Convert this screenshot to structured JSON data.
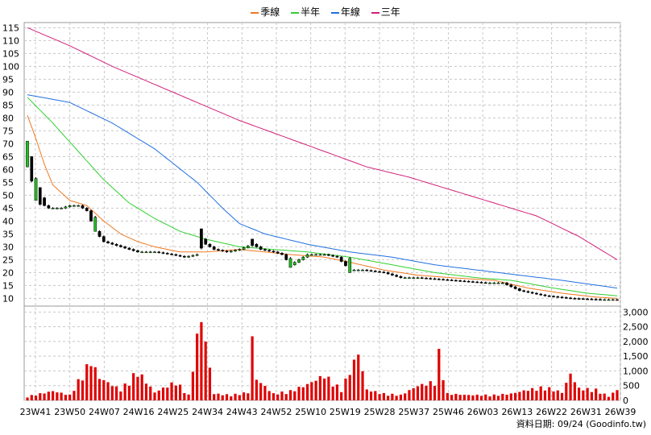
{
  "legend": {
    "items": [
      {
        "label": "季線",
        "color": "#f07820"
      },
      {
        "label": "半年",
        "color": "#30d030"
      },
      {
        "label": "年線",
        "color": "#2070e0"
      },
      {
        "label": "三年",
        "color": "#d0207a"
      }
    ]
  },
  "footer": {
    "text": "資料日期: 09/24  (Goodinfo.tw)"
  },
  "chart_data": {
    "type": "candlestick",
    "x_tick_labels": [
      "23W41",
      "23W50",
      "24W07",
      "24W16",
      "24W25",
      "24W34",
      "24W43",
      "24W52",
      "25W10",
      "25W19",
      "25W28",
      "25W37",
      "25W46",
      "26W03",
      "26W13",
      "26W22",
      "26W31",
      "26W39"
    ],
    "price_axis": {
      "ticks": [
        10,
        15,
        20,
        25,
        30,
        35,
        40,
        45,
        50,
        55,
        60,
        65,
        70,
        75,
        80,
        85,
        90,
        95,
        100,
        105,
        110,
        115
      ],
      "ylim": [
        7,
        117
      ],
      "grid": true
    },
    "volume_axis": {
      "ticks": [
        "0",
        "500",
        "1,000",
        "1,500",
        "2,000",
        "2,500",
        "3,000"
      ],
      "ylim": [
        0,
        3200
      ],
      "grid": true
    },
    "colors": {
      "up": "#20c020",
      "down": "#000000",
      "vol_bar": "#e00000",
      "last_candle": "#e00000"
    },
    "price_anchors": [
      [
        0,
        71
      ],
      [
        1,
        62
      ],
      [
        2,
        54
      ],
      [
        3,
        49
      ],
      [
        4,
        46
      ],
      [
        5,
        45
      ],
      [
        6,
        45
      ],
      [
        8,
        45
      ],
      [
        10,
        46
      ],
      [
        12,
        46
      ],
      [
        14,
        44
      ],
      [
        16,
        36
      ],
      [
        18,
        32
      ],
      [
        20,
        31
      ],
      [
        22,
        30
      ],
      [
        24,
        29
      ],
      [
        26,
        28
      ],
      [
        28,
        28
      ],
      [
        30,
        28
      ],
      [
        34,
        27
      ],
      [
        37,
        26
      ],
      [
        40,
        27
      ],
      [
        41,
        33
      ],
      [
        42,
        31
      ],
      [
        44,
        29
      ],
      [
        47,
        28
      ],
      [
        50,
        29
      ],
      [
        53,
        31
      ],
      [
        55,
        29
      ],
      [
        58,
        28
      ],
      [
        60,
        27
      ],
      [
        62,
        23
      ],
      [
        64,
        25
      ],
      [
        66,
        27
      ],
      [
        70,
        27
      ],
      [
        73,
        26
      ],
      [
        76,
        21
      ],
      [
        79,
        21
      ],
      [
        84,
        20
      ],
      [
        88,
        18
      ],
      [
        92,
        18
      ],
      [
        100,
        17
      ],
      [
        108,
        16
      ],
      [
        112,
        16
      ],
      [
        116,
        13
      ],
      [
        122,
        11
      ],
      [
        128,
        10
      ],
      [
        135,
        9.5
      ],
      [
        139,
        9.5
      ]
    ],
    "big_candles": [
      [
        0,
        71,
        61
      ],
      [
        1,
        65,
        55
      ],
      [
        2,
        57,
        48
      ],
      [
        3,
        53,
        46
      ],
      [
        16,
        42,
        36
      ],
      [
        41,
        37,
        29
      ],
      [
        53,
        33,
        30
      ],
      [
        62,
        26,
        22
      ],
      [
        76,
        26,
        20
      ]
    ],
    "ma": {
      "quarter": [
        [
          0,
          81
        ],
        [
          2,
          72
        ],
        [
          4,
          62
        ],
        [
          6,
          54
        ],
        [
          10,
          48
        ],
        [
          14,
          46
        ],
        [
          18,
          40
        ],
        [
          22,
          35
        ],
        [
          26,
          32
        ],
        [
          30,
          30
        ],
        [
          36,
          28
        ],
        [
          42,
          28
        ],
        [
          50,
          29
        ],
        [
          56,
          28
        ],
        [
          62,
          27
        ],
        [
          70,
          26
        ],
        [
          76,
          24
        ],
        [
          84,
          21
        ],
        [
          92,
          19
        ],
        [
          100,
          18
        ],
        [
          110,
          17
        ],
        [
          118,
          14
        ],
        [
          126,
          12
        ],
        [
          134,
          10.5
        ],
        [
          139,
          10
        ]
      ],
      "half_year": [
        [
          0,
          88
        ],
        [
          6,
          78
        ],
        [
          12,
          67
        ],
        [
          18,
          56
        ],
        [
          24,
          47
        ],
        [
          30,
          41
        ],
        [
          36,
          36
        ],
        [
          42,
          33
        ],
        [
          50,
          30
        ],
        [
          58,
          29
        ],
        [
          66,
          28
        ],
        [
          76,
          26
        ],
        [
          86,
          23
        ],
        [
          96,
          20
        ],
        [
          106,
          18
        ],
        [
          114,
          17
        ],
        [
          124,
          14
        ],
        [
          132,
          12
        ],
        [
          139,
          11
        ]
      ],
      "year": [
        [
          0,
          89
        ],
        [
          10,
          86
        ],
        [
          20,
          78
        ],
        [
          30,
          68
        ],
        [
          40,
          55
        ],
        [
          46,
          45
        ],
        [
          50,
          39
        ],
        [
          56,
          35
        ],
        [
          66,
          31
        ],
        [
          76,
          28
        ],
        [
          86,
          26
        ],
        [
          96,
          23
        ],
        [
          106,
          21
        ],
        [
          116,
          19
        ],
        [
          126,
          17
        ],
        [
          139,
          14
        ]
      ],
      "three_year": [
        [
          0,
          115
        ],
        [
          10,
          108
        ],
        [
          20,
          100
        ],
        [
          30,
          93
        ],
        [
          40,
          86
        ],
        [
          50,
          79
        ],
        [
          60,
          73
        ],
        [
          70,
          67
        ],
        [
          80,
          61
        ],
        [
          90,
          57
        ],
        [
          100,
          52
        ],
        [
          110,
          47
        ],
        [
          120,
          42
        ],
        [
          130,
          34
        ],
        [
          139,
          25
        ]
      ]
    },
    "volume_anchors": [
      [
        0,
        150
      ],
      [
        6,
        350
      ],
      [
        10,
        200
      ],
      [
        15,
        1500
      ],
      [
        17,
        850
      ],
      [
        22,
        400
      ],
      [
        26,
        1100
      ],
      [
        30,
        300
      ],
      [
        35,
        700
      ],
      [
        38,
        200
      ],
      [
        40,
        2350
      ],
      [
        41,
        3150
      ],
      [
        44,
        250
      ],
      [
        48,
        200
      ],
      [
        52,
        300
      ],
      [
        53,
        2300
      ],
      [
        54,
        800
      ],
      [
        58,
        250
      ],
      [
        62,
        350
      ],
      [
        66,
        600
      ],
      [
        70,
        950
      ],
      [
        74,
        400
      ],
      [
        78,
        1800
      ],
      [
        80,
        400
      ],
      [
        84,
        250
      ],
      [
        88,
        200
      ],
      [
        92,
        550
      ],
      [
        96,
        700
      ],
      [
        97,
        1750
      ],
      [
        99,
        250
      ],
      [
        104,
        200
      ],
      [
        110,
        200
      ],
      [
        114,
        250
      ],
      [
        118,
        400
      ],
      [
        122,
        500
      ],
      [
        126,
        300
      ],
      [
        128,
        1000
      ],
      [
        130,
        450
      ],
      [
        134,
        400
      ],
      [
        137,
        150
      ],
      [
        139,
        400
      ]
    ]
  }
}
